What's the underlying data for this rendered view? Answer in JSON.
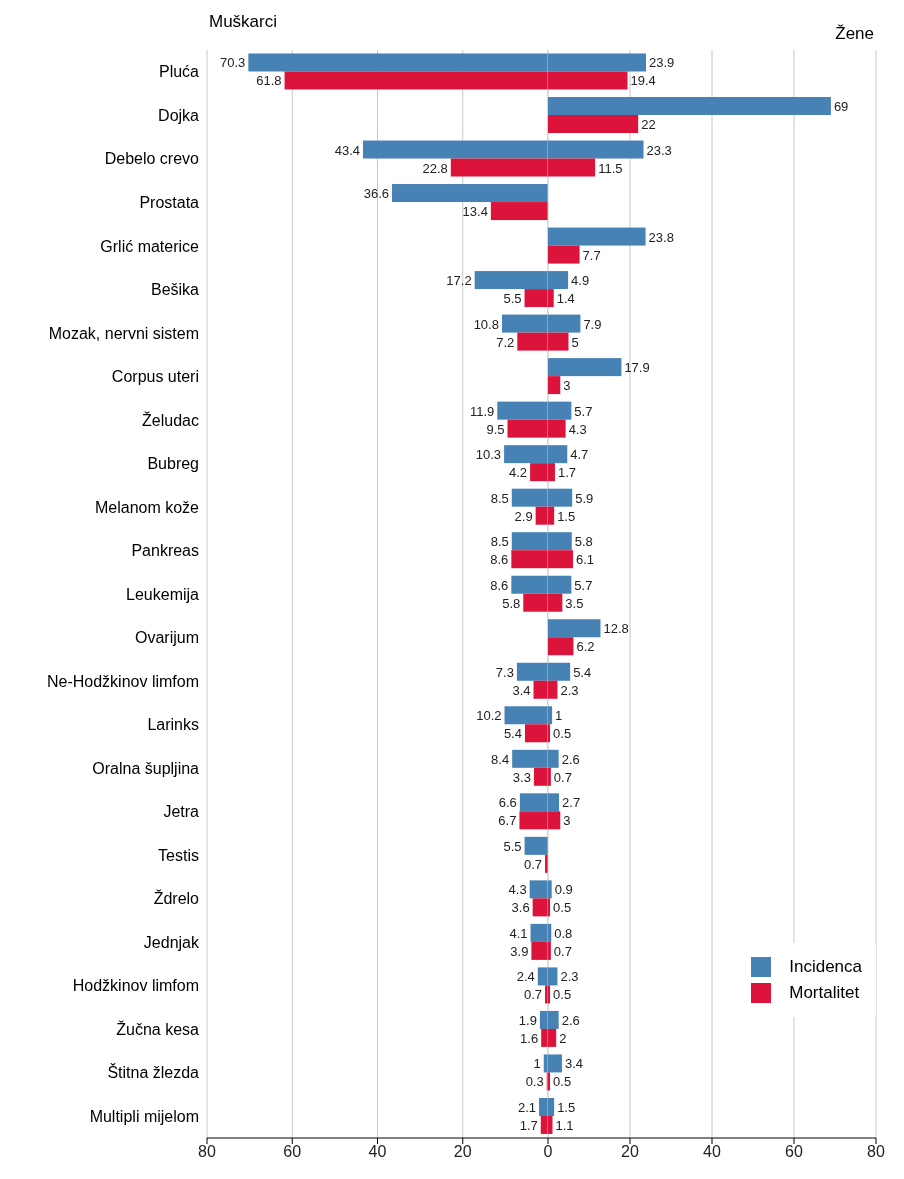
{
  "chart_data": [
    {
      "type": "bar",
      "orientation": "horizontal",
      "title": "Muškarci",
      "data_labels": true,
      "categories": [
        "Pluća",
        "Dojka",
        "Debelo crevo",
        "Prostata",
        "Grlić materice",
        "Bešika",
        "Mozak, nervni sistem",
        "Corpus uteri",
        "Želudac",
        "Bubreg",
        "Melanom kože",
        "Pankreas",
        "Leukemija",
        "Ovarijum",
        "Ne-Hodžkinov limfom",
        "Larinks",
        "Oralna šupljina",
        "Jetra",
        "Testis",
        "Ždrelo",
        "Jednjak",
        "Hodžkinov limfom",
        "Žučna kesa",
        "Štitna žlezda",
        "Multipli mijelom"
      ],
      "series": [
        {
          "color": "#4682b4",
          "values": [
            70.3,
            null,
            43.4,
            36.6,
            null,
            17.2,
            10.8,
            null,
            11.9,
            10.3,
            8.5,
            8.5,
            8.6,
            null,
            7.3,
            10.2,
            8.4,
            6.6,
            5.5,
            4.3,
            4.1,
            2.4,
            1.9,
            1,
            2.1
          ]
        },
        {
          "color": "#dc143c",
          "values": [
            61.8,
            null,
            22.8,
            13.4,
            null,
            5.5,
            7.2,
            null,
            9.5,
            4.2,
            2.9,
            8.6,
            5.8,
            null,
            3.4,
            5.4,
            3.3,
            6.7,
            0.7,
            3.6,
            3.9,
            0.7,
            1.6,
            0.3,
            1.7
          ]
        }
      ],
      "xlim": [
        80,
        0
      ],
      "xticks": [
        80,
        60,
        40,
        20
      ],
      "grid": "x"
    },
    {
      "type": "bar",
      "orientation": "horizontal",
      "title": "Žene",
      "data_labels": true,
      "tick_labels": "x",
      "categories": [
        null,
        null,
        null,
        null,
        null,
        null,
        null,
        null,
        null,
        null,
        null,
        null,
        null,
        null,
        null,
        null,
        null,
        null,
        null,
        null,
        null,
        null,
        null,
        null,
        null
      ],
      "series": [
        {
          "name": "Incidenca",
          "color": "#4682b4",
          "values": [
            23.9,
            69,
            23.3,
            null,
            23.8,
            4.9,
            7.9,
            17.9,
            5.7,
            4.7,
            5.9,
            5.8,
            5.7,
            12.8,
            5.4,
            1,
            2.6,
            2.7,
            null,
            0.9,
            0.8,
            2.3,
            2.6,
            3.4,
            1.5
          ]
        },
        {
          "name": "Mortalitet",
          "color": "#dc143c",
          "values": [
            19.4,
            22,
            11.5,
            null,
            7.7,
            1.4,
            5,
            3,
            4.3,
            1.7,
            1.5,
            6.1,
            3.5,
            6.2,
            2.3,
            0.5,
            0.7,
            3,
            null,
            0.5,
            0.7,
            0.5,
            2,
            0.5,
            1.1
          ]
        }
      ],
      "xlim": [
        0,
        80
      ],
      "xticks": [
        0,
        20,
        40,
        60,
        80
      ],
      "grid": "x",
      "legend": "bottom right"
    }
  ]
}
